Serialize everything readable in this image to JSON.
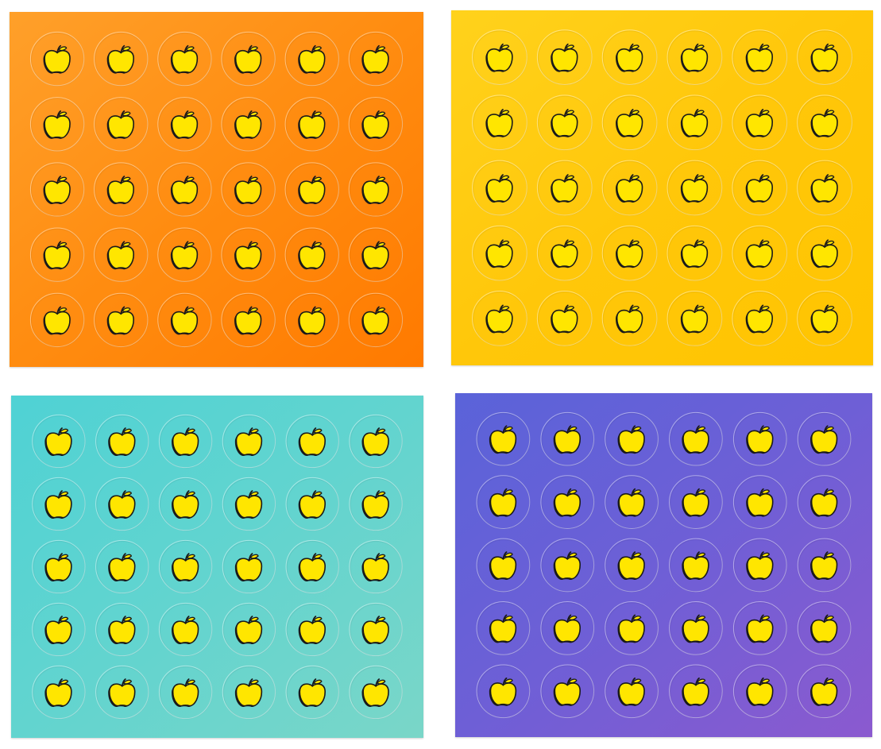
{
  "sticker": {
    "icon": "apple-icon",
    "fill": "#ffe600",
    "outline": "#1a1a1a",
    "ring": "#ffffff"
  },
  "sheets": [
    {
      "id": "sheet-orange",
      "rows": 5,
      "cols": 6,
      "gradient": [
        "#ffa02a",
        "#ff8c10",
        "#ff7a00"
      ]
    },
    {
      "id": "sheet-yellow",
      "rows": 5,
      "cols": 6,
      "gradient": [
        "#ffd21c",
        "#ffc70a",
        "#ffc400"
      ]
    },
    {
      "id": "sheet-teal",
      "rows": 5,
      "cols": 6,
      "gradient": [
        "#4fd2d4",
        "#62d4cf",
        "#7ad6c8"
      ]
    },
    {
      "id": "sheet-purple",
      "rows": 5,
      "cols": 6,
      "gradient": [
        "#5a63d9",
        "#6e5fd6",
        "#8b5acf"
      ]
    }
  ]
}
